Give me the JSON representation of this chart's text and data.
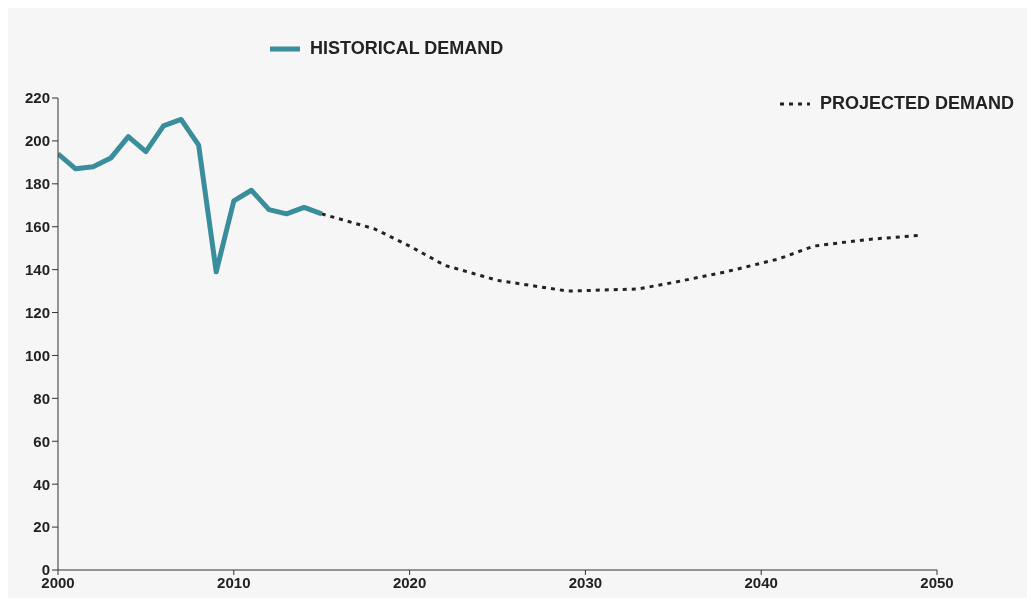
{
  "chart_data": {
    "type": "line",
    "series": [
      {
        "name": "HISTORICAL DEMAND",
        "color": "#3a8d9b",
        "line_style": "solid",
        "x": [
          2000,
          2001,
          2002,
          2003,
          2004,
          2005,
          2006,
          2007,
          2008,
          2009,
          2010,
          2011,
          2012,
          2013,
          2014,
          2015
        ],
        "values": [
          194,
          187,
          188,
          192,
          202,
          195,
          207,
          210,
          198,
          139,
          172,
          177,
          168,
          166,
          169,
          166
        ]
      },
      {
        "name": "PROJECTED DEMAND",
        "color": "#222222",
        "line_style": "dotted",
        "x": [
          2015,
          2018,
          2020,
          2022,
          2025,
          2029,
          2033,
          2035,
          2038,
          2041,
          2043,
          2046,
          2049
        ],
        "values": [
          166,
          159,
          151,
          142,
          135,
          130,
          131,
          134,
          139,
          145,
          151,
          154,
          156
        ]
      }
    ],
    "xlim": [
      2000,
      2050
    ],
    "xticks": [
      2000,
      2010,
      2020,
      2030,
      2040,
      2050
    ],
    "ylim": [
      0,
      220
    ],
    "yticks": [
      0,
      20,
      40,
      60,
      80,
      100,
      120,
      140,
      160,
      180,
      200,
      220
    ],
    "legend": "top",
    "marker": "none"
  }
}
